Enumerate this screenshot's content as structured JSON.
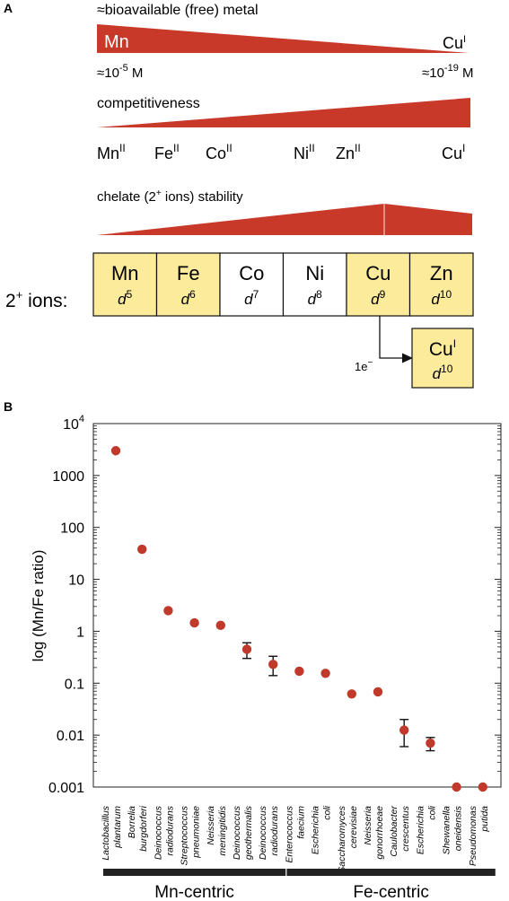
{
  "panel_a": {
    "label": "A",
    "bioavail": {
      "title": "≈bioavailable (free) metal",
      "left_metal": "Mn",
      "right_metal": "Cu",
      "right_metal_sup": "I",
      "left_conc_prefix": "≈10",
      "left_conc_exp": "-5",
      "left_conc_unit": " M",
      "right_conc_prefix": "≈10",
      "right_conc_exp": "-19",
      "right_conc_unit": " M"
    },
    "competitiveness": {
      "title": "competitiveness",
      "ions": [
        {
          "sym": "Mn",
          "ox": "II"
        },
        {
          "sym": "Fe",
          "ox": "II"
        },
        {
          "sym": "Co",
          "ox": "II"
        },
        {
          "sym": "Ni",
          "ox": "II"
        },
        {
          "sym": "Zn",
          "ox": "II"
        },
        {
          "sym": "Cu",
          "ox": "I"
        }
      ]
    },
    "chelate": {
      "title": "chelate (2",
      "title_sup": "+",
      "title_end": " ions) stability"
    },
    "ions_row": {
      "label": "2",
      "label_sup": "+",
      "label_end": " ions:",
      "cells": [
        {
          "sym": "Mn",
          "d": "d",
          "n": "5",
          "highlight": true
        },
        {
          "sym": "Fe",
          "d": "d",
          "n": "6",
          "highlight": true
        },
        {
          "sym": "Co",
          "d": "d",
          "n": "7",
          "highlight": false
        },
        {
          "sym": "Ni",
          "d": "d",
          "n": "8",
          "highlight": false
        },
        {
          "sym": "Cu",
          "d": "d",
          "n": "9",
          "highlight": true
        },
        {
          "sym": "Zn",
          "d": "d",
          "n": "10",
          "highlight": true
        }
      ],
      "reduced": {
        "sym": "Cu",
        "sup": "I",
        "d": "d",
        "n": "10"
      },
      "electron": "1e",
      "electron_sup": "−"
    },
    "colors": {
      "wedge": "#c9392a",
      "cell_highlight": "#fbeb9b",
      "cell_plain": "#ffffff"
    }
  },
  "chart_data": {
    "panel_label": "B",
    "type": "scatter",
    "ylabel": "log (Mn/Fe ratio)",
    "y_scale": "log",
    "ylim": [
      0.001,
      10000
    ],
    "y_ticks": [
      {
        "v": 10000,
        "base": "10",
        "exp": "4"
      },
      {
        "v": 1000,
        "base": "1000",
        "exp": ""
      },
      {
        "v": 100,
        "base": "100",
        "exp": ""
      },
      {
        "v": 10,
        "base": "10",
        "exp": ""
      },
      {
        "v": 1,
        "base": "1",
        "exp": ""
      },
      {
        "v": 0.1,
        "base": "0.1",
        "exp": ""
      },
      {
        "v": 0.01,
        "base": "0.01",
        "exp": ""
      },
      {
        "v": 0.001,
        "base": "0.001",
        "exp": ""
      }
    ],
    "point_color": "#c0392b",
    "points": [
      {
        "label": [
          "Lactobacillus",
          "plantarum"
        ],
        "y": 3000
      },
      {
        "label": [
          "Borrelia",
          "burgdorferi"
        ],
        "y": 38
      },
      {
        "label": [
          "Deinococcus",
          "radiodurans"
        ],
        "y": 2.5
      },
      {
        "label": [
          "Streptococcus",
          "pneumoniae"
        ],
        "y": 1.45
      },
      {
        "label": [
          "Neisseria",
          "meningitidis"
        ],
        "y": 1.3
      },
      {
        "label": [
          "Deinococcus",
          "geothermalis"
        ],
        "y": 0.45,
        "err": [
          0.3,
          0.6
        ]
      },
      {
        "label": [
          "Deinococcus",
          "radiodurans"
        ],
        "y": 0.23,
        "err": [
          0.14,
          0.33
        ]
      },
      {
        "label": [
          "Enterococcus",
          "faecium"
        ],
        "y": 0.17
      },
      {
        "label": [
          "Escherichia",
          "coli"
        ],
        "y": 0.155
      },
      {
        "label": [
          "Saccharomyces",
          "cerevisiae"
        ],
        "y": 0.062
      },
      {
        "label": [
          "Neisseria",
          "gonorrhoeae"
        ],
        "y": 0.068
      },
      {
        "label": [
          "Caulobacter",
          "crescentus"
        ],
        "y": 0.0125,
        "err": [
          0.006,
          0.02
        ]
      },
      {
        "label": [
          "Escherichia",
          "coli"
        ],
        "y": 0.007,
        "err": [
          0.005,
          0.009
        ]
      },
      {
        "label": [
          "Shewanella",
          "oneidensis"
        ],
        "y": 0.001
      },
      {
        "label": [
          "Pseudomonas",
          "putida"
        ],
        "y": 0.001
      }
    ],
    "groups": [
      {
        "name": "Mn-centric",
        "from": 0,
        "to": 6
      },
      {
        "name": "Fe-centric",
        "from": 7,
        "to": 14
      }
    ]
  }
}
